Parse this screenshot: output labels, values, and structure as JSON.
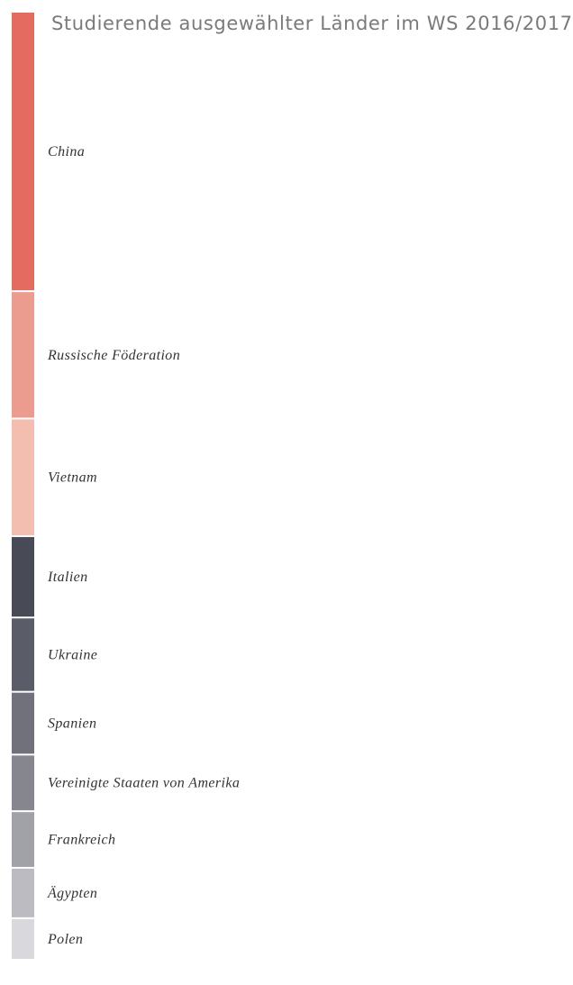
{
  "chart_data": {
    "type": "bar",
    "orientation": "vertical-stacked",
    "title": "Studierende ausgewählter Länder im WS 2016/2017",
    "categories": [
      "China",
      "Russische Föderation",
      "Vietnam",
      "Italien",
      "Ukraine",
      "Spanien",
      "Vereinigte Staaten von Amerika",
      "Frankreich",
      "Ägypten",
      "Polen"
    ],
    "values": [
      316,
      144,
      133,
      92,
      84,
      71,
      64,
      64,
      57,
      47
    ],
    "colors": [
      "#e46b5f",
      "#ec9c8f",
      "#f3bdb0",
      "#484a56",
      "#5a5c67",
      "#70717b",
      "#86868f",
      "#a1a1a8",
      "#bbbbc1",
      "#d8d8dd"
    ],
    "xlabel": "",
    "ylabel": "",
    "grid": false,
    "legend": "none"
  }
}
